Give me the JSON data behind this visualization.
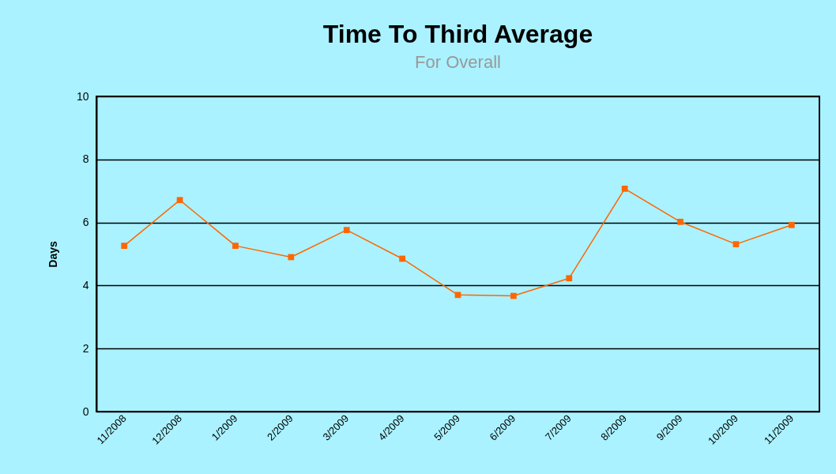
{
  "chart_data": {
    "type": "line",
    "title": "Time To Third Average",
    "subtitle": "For Overall",
    "ylabel": "Days",
    "categories": [
      "11/2008",
      "12/2008",
      "1/2009",
      "2/2009",
      "3/2009",
      "4/2009",
      "5/2009",
      "6/2009",
      "7/2009",
      "8/2009",
      "9/2009",
      "10/2009",
      "11/2009"
    ],
    "series": [
      {
        "color": "#ff6600",
        "values": [
          5.26,
          6.71,
          5.26,
          4.9,
          5.76,
          4.85,
          3.7,
          3.67,
          4.23,
          7.07,
          6.02,
          5.31,
          5.92
        ]
      }
    ],
    "ylim": [
      0,
      10
    ],
    "yticks": [
      0,
      2,
      4,
      6,
      8,
      10
    ],
    "grid": "y",
    "legend": false,
    "marker": "square",
    "line_style": "solid"
  }
}
